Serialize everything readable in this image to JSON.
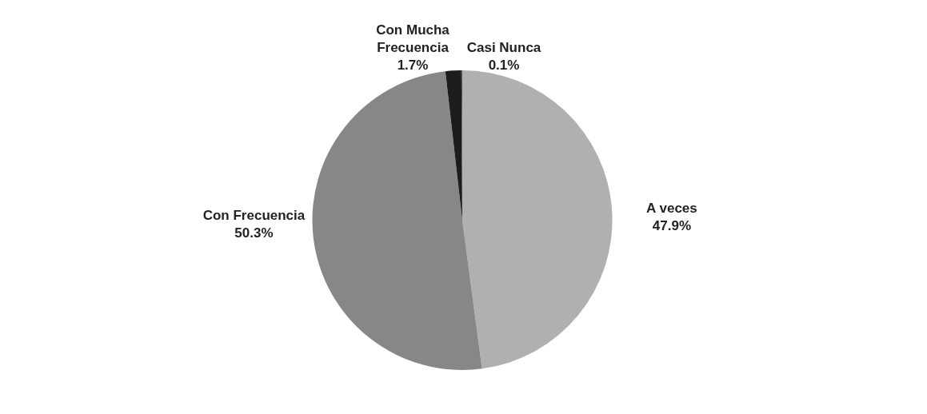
{
  "chart_data": {
    "type": "pie",
    "categories": [
      "A veces",
      "Con Frecuencia",
      "Con Mucha Frecuencia",
      "Casi Nunca"
    ],
    "values": [
      47.9,
      50.3,
      1.7,
      0.1
    ],
    "colors": [
      "#b0b0b0",
      "#878787",
      "#1c1c1c",
      "#5a5a5a"
    ],
    "value_labels": [
      "47.9%",
      "50.3%",
      "1.7%",
      "0.1%"
    ],
    "legend": false
  }
}
